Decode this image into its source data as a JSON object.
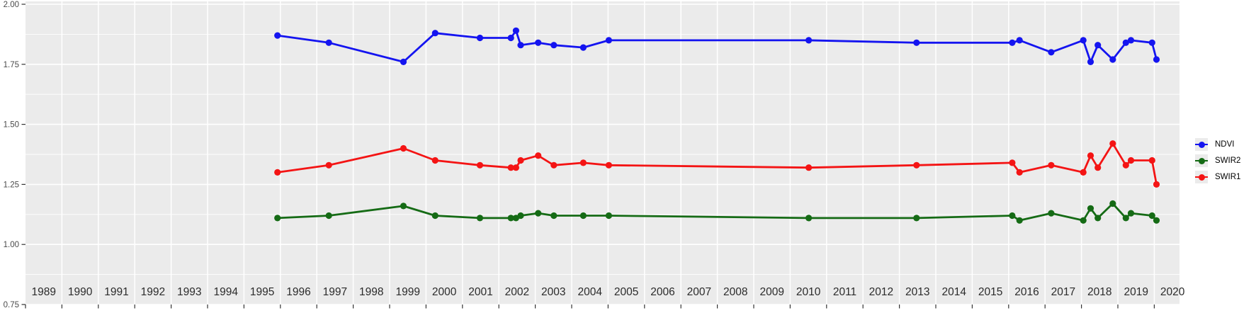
{
  "chart": {
    "background_color": "#ffffff",
    "panel_color": "#ebebeb",
    "grid_color": "#ffffff",
    "x_tick_label_color": "#2b2b2b",
    "y_tick_label_color": "#4a4a4a",
    "tick_mark_color": "#333333"
  },
  "legend": {
    "position": "right",
    "key_background": "#ebebeb",
    "items": [
      {
        "label": "NDVI",
        "color": "#1414f0",
        "icon": "point-line-key"
      },
      {
        "label": "SWIR2",
        "color": "#156b15",
        "icon": "point-line-key"
      },
      {
        "label": "SWIR1",
        "color": "#f41414",
        "icon": "point-line-key"
      }
    ]
  },
  "chart_data": {
    "type": "line",
    "title": "",
    "xlabel": "",
    "ylabel": "",
    "grid": true,
    "legend_position": "right",
    "xlim": [
      1989,
      2020.7
    ],
    "ylim": [
      0.75,
      2.0
    ],
    "x_tick_labels": [
      "1989",
      "1990",
      "1991",
      "1992",
      "1993",
      "1994",
      "1995",
      "1996",
      "1997",
      "1998",
      "1999",
      "2000",
      "2001",
      "2002",
      "2003",
      "2004",
      "2005",
      "2006",
      "2007",
      "2008",
      "2009",
      "2010",
      "2011",
      "2012",
      "2013",
      "2014",
      "2015",
      "2016",
      "2017",
      "2018",
      "2019",
      "2020"
    ],
    "y_tick_labels": [
      "2.00",
      "1.75",
      "1.50",
      "1.25",
      "1.00",
      "0.75"
    ],
    "y_tick_values": [
      2.0,
      1.75,
      1.5,
      1.25,
      1.0,
      0.75
    ],
    "y_minor_step": 0.125,
    "x": [
      1995.92,
      1997.33,
      1999.38,
      2000.25,
      2001.48,
      2002.33,
      2002.47,
      2002.6,
      2003.08,
      2003.51,
      2004.32,
      2005.02,
      2010.51,
      2013.47,
      2016.1,
      2016.3,
      2017.17,
      2018.05,
      2018.25,
      2018.45,
      2018.86,
      2019.22,
      2019.36,
      2019.94,
      2020.06
    ],
    "series": [
      {
        "name": "NDVI",
        "color": "#1414f0",
        "values": [
          1.87,
          1.84,
          1.76,
          1.88,
          1.86,
          1.86,
          1.89,
          1.83,
          1.84,
          1.83,
          1.82,
          1.85,
          1.85,
          1.84,
          1.84,
          1.85,
          1.8,
          1.85,
          1.76,
          1.83,
          1.77,
          1.84,
          1.85,
          1.84,
          1.77
        ]
      },
      {
        "name": "SWIR2",
        "color": "#156b15",
        "values": [
          1.11,
          1.12,
          1.16,
          1.12,
          1.11,
          1.11,
          1.11,
          1.12,
          1.13,
          1.12,
          1.12,
          1.12,
          1.11,
          1.11,
          1.12,
          1.1,
          1.13,
          1.1,
          1.15,
          1.11,
          1.17,
          1.11,
          1.13,
          1.12,
          1.1
        ]
      },
      {
        "name": "SWIR1",
        "color": "#f41414",
        "values": [
          1.3,
          1.33,
          1.4,
          1.35,
          1.33,
          1.32,
          1.32,
          1.35,
          1.37,
          1.33,
          1.34,
          1.33,
          1.32,
          1.33,
          1.34,
          1.3,
          1.33,
          1.3,
          1.37,
          1.32,
          1.42,
          1.33,
          1.35,
          1.35,
          1.25
        ]
      }
    ]
  }
}
